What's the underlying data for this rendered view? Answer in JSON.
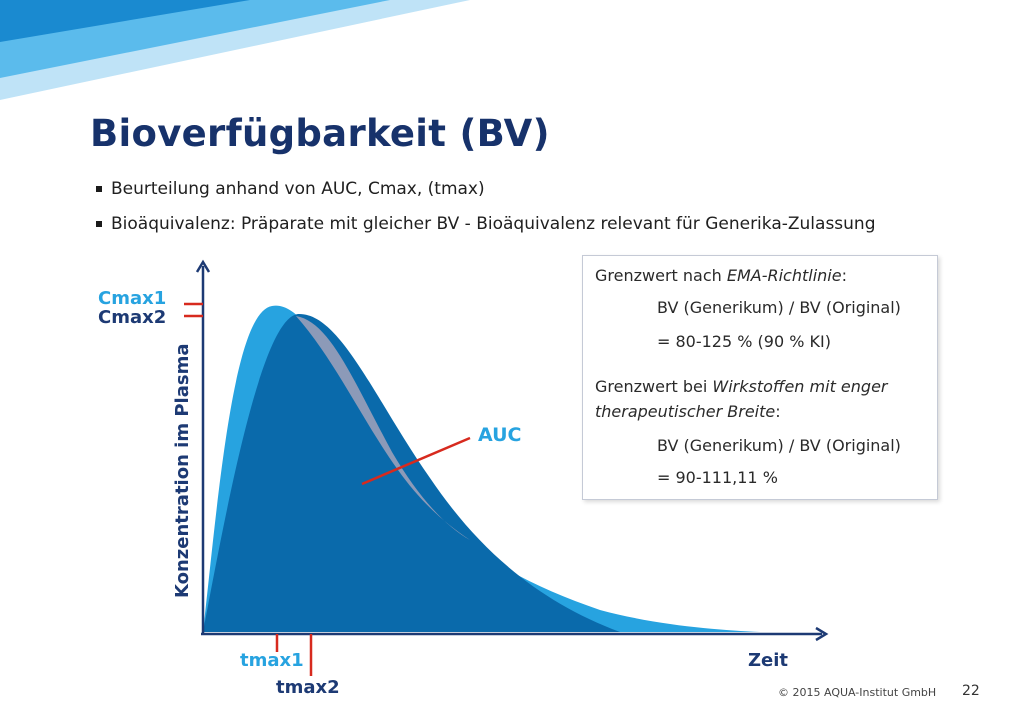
{
  "slide": {
    "title": "Bioverfügbarkeit (BV)",
    "bullets": [
      "Beurteilung anhand von AUC, Cmax, (tmax)",
      "Bioäquivalenz: Präparate mit gleicher BV - Bioäquivalenz relevant für Generika-Zulassung"
    ]
  },
  "diagram": {
    "y_axis_label": "Konzentration im Plasma",
    "x_axis_label": "Zeit",
    "cmax1": "Cmax1",
    "cmax2": "Cmax2",
    "tmax1": "tmax1",
    "tmax2": "tmax2",
    "auc": "AUC",
    "colors": {
      "curve1": "#27a3e0",
      "curve2": "#0a6aab",
      "overlap": "#8c9ab8",
      "axis": "#1d3a74",
      "marker": "#d72a1e",
      "label_light": "#27a3e0",
      "label_dark": "#1d3a74"
    }
  },
  "infobox": {
    "line1_prefix": "Grenzwert nach ",
    "line1_italic": "EMA-Richtlinie",
    "line1_suffix": ":",
    "line2": "BV (Generikum) / BV (Original)",
    "line3": "= 80-125 % (90 % KI)",
    "line4_prefix": "Grenzwert bei ",
    "line4_italic": "Wirkstoffen mit enger",
    "line5_italic": "therapeutischer Breite",
    "line5_suffix": ":",
    "line6": "BV (Generikum) / BV (Original)",
    "line7": "= 90-111,11 %"
  },
  "footer": {
    "copyright": "© 2015 AQUA-Institut GmbH",
    "page_number": "22"
  }
}
